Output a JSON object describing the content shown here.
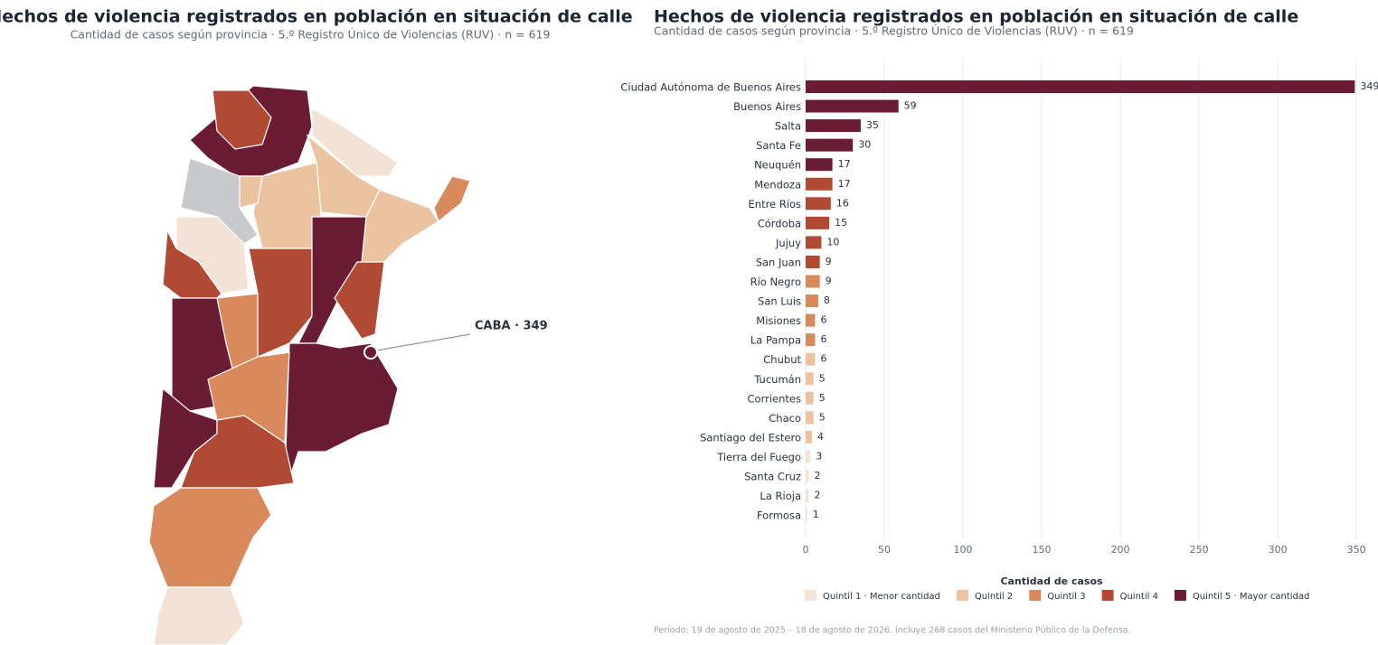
{
  "map": {
    "title": "Hechos de violencia registrados en población en situación de calle",
    "subtitle": "Cantidad de casos según provincia · 5.º Registro Único de Violencias (RUV) · n = 619",
    "annotation": "CABA · 349"
  },
  "chart_data": {
    "type": "bar",
    "orientation": "horizontal",
    "title": "Hechos de violencia registrados en población en situación de calle",
    "subtitle": "Cantidad de casos según provincia · 5.º Registro Único de Violencias (RUV) · n = 619",
    "categories": [
      "Ciudad Autónoma de Buenos Aires",
      "Buenos Aires",
      "Salta",
      "Santa Fe",
      "Neuquén",
      "Mendoza",
      "Entre Ríos",
      "Córdoba",
      "Jujuy",
      "San Juan",
      "Río Negro",
      "San Luis",
      "Misiones",
      "La Pampa",
      "Chubut",
      "Tucumán",
      "Corrientes",
      "Chaco",
      "Santiago del Estero",
      "Tierra del Fuego",
      "Santa Cruz",
      "La Rioja",
      "Formosa"
    ],
    "values": [
      349,
      59,
      35,
      30,
      17,
      17,
      16,
      15,
      10,
      9,
      9,
      8,
      6,
      6,
      6,
      5,
      5,
      5,
      4,
      3,
      2,
      2,
      1
    ],
    "quintiles": [
      4,
      4,
      4,
      4,
      4,
      3,
      3,
      3,
      3,
      3,
      2,
      2,
      2,
      2,
      1,
      1,
      1,
      1,
      1,
      0,
      0,
      0,
      0
    ],
    "xlim": [
      0,
      362
    ],
    "xticks": [
      0,
      50,
      100,
      150,
      200,
      250,
      300,
      350
    ],
    "grid": true,
    "legend": {
      "title": "Cantidad de casos",
      "items": [
        {
          "label": "Quintil 1 · Menor cantidad",
          "color": "#f3e3d6"
        },
        {
          "label": "Quintil 2",
          "color": "#ecc3a0"
        },
        {
          "label": "Quintil 3",
          "color": "#d98a5c"
        },
        {
          "label": "Quintil 4",
          "color": "#b04a35"
        },
        {
          "label": "Quintil 5 · Mayor cantidad",
          "color": "#6b1c35"
        }
      ]
    },
    "note": "Período: 19 de agosto de 2025 – 18 de agosto de 2026. Incluye 268 casos del Ministerio Público de la Defensa."
  }
}
